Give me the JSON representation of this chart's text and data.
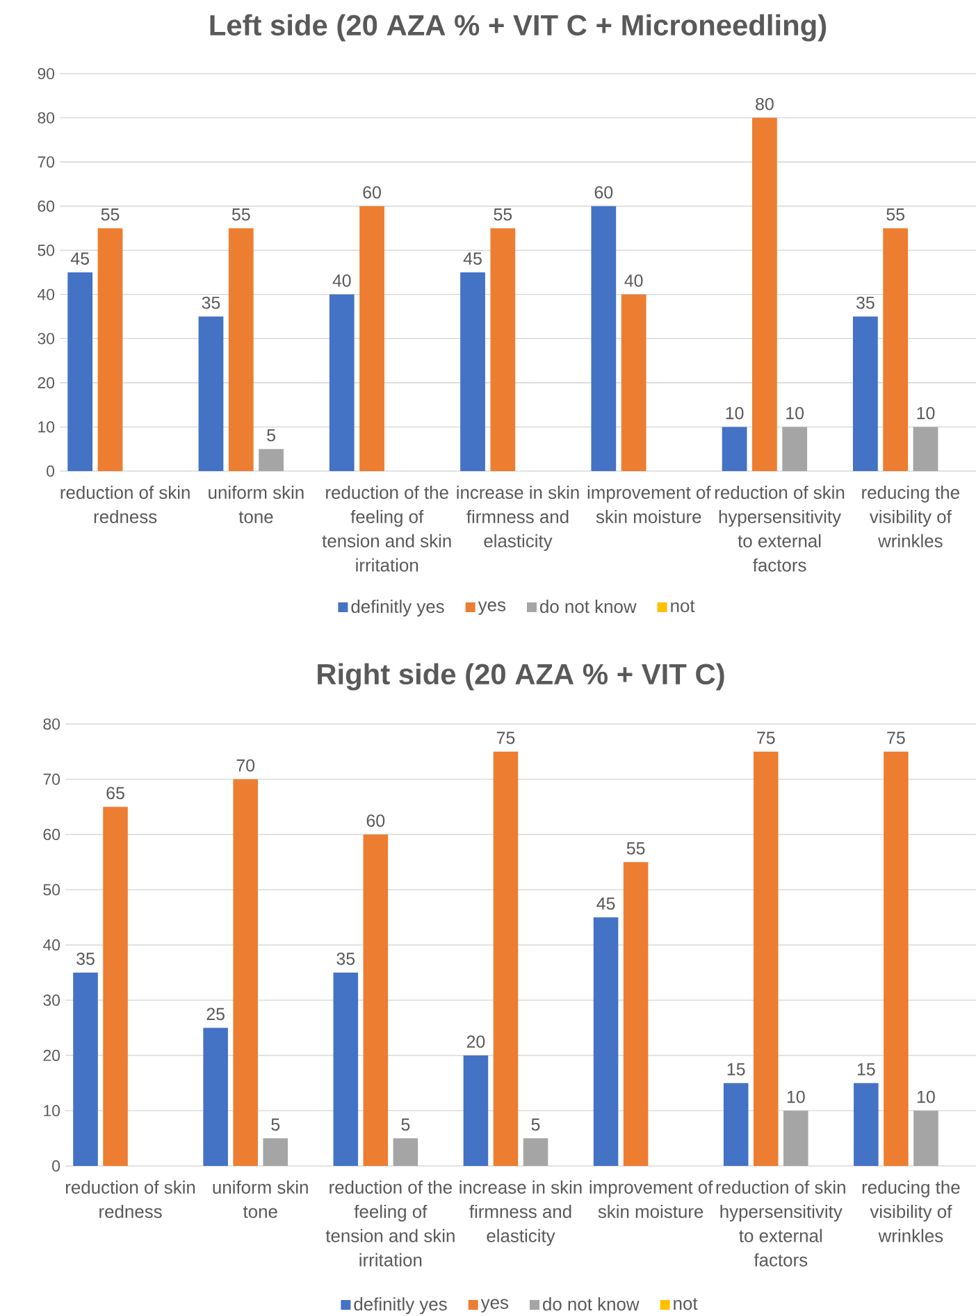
{
  "chart_data": [
    {
      "type": "bar",
      "title": "Left side (20 AZA % + VIT C + Microneedling)",
      "categories": [
        "reduction of skin redness",
        "uniform skin tone",
        "reduction of the feeling of tension and skin irritation",
        "increase in skin firmness and elasticity",
        "improvement of skin moisture",
        "reduction of skin hypersensitivity to external factors",
        "reducing the visibility of wrinkles"
      ],
      "series": [
        {
          "name": "definitly yes",
          "color": "#4472c4",
          "values": [
            45,
            35,
            40,
            45,
            60,
            10,
            35
          ]
        },
        {
          "name": "yes",
          "color": "#ed7d31",
          "values": [
            55,
            55,
            60,
            55,
            40,
            80,
            55
          ]
        },
        {
          "name": "do not know",
          "color": "#a5a5a5",
          "values": [
            null,
            5,
            null,
            null,
            null,
            10,
            10
          ]
        },
        {
          "name": "not",
          "color": "#ffc000",
          "values": [
            null,
            null,
            null,
            null,
            null,
            null,
            null
          ]
        }
      ],
      "ylim": [
        0,
        90
      ],
      "yticks": [
        0,
        10,
        20,
        30,
        40,
        50,
        60,
        70,
        80,
        90
      ],
      "grid": "y",
      "legend": "bottom",
      "data_labels": true
    },
    {
      "type": "bar",
      "title": "Right side (20 AZA % + VIT C)",
      "categories": [
        "reduction of skin redness",
        "uniform skin tone",
        "reduction of the feeling of tension and skin irritation",
        "increase in skin firmness and elasticity",
        "improvement of skin moisture",
        "reduction of skin hypersensitivity to external factors",
        "reducing the visibility of wrinkles"
      ],
      "series": [
        {
          "name": "definitly yes",
          "color": "#4472c4",
          "values": [
            35,
            25,
            35,
            20,
            45,
            15,
            15
          ]
        },
        {
          "name": "yes",
          "color": "#ed7d31",
          "values": [
            65,
            70,
            60,
            75,
            55,
            75,
            75
          ]
        },
        {
          "name": "do not know",
          "color": "#a5a5a5",
          "values": [
            null,
            5,
            5,
            5,
            null,
            10,
            10
          ]
        },
        {
          "name": "not",
          "color": "#ffc000",
          "values": [
            null,
            null,
            null,
            null,
            null,
            null,
            null
          ]
        }
      ],
      "ylim": [
        0,
        80
      ],
      "yticks": [
        0,
        10,
        20,
        30,
        40,
        50,
        60,
        70,
        80
      ],
      "grid": "y",
      "legend": "bottom",
      "data_labels": true
    }
  ]
}
